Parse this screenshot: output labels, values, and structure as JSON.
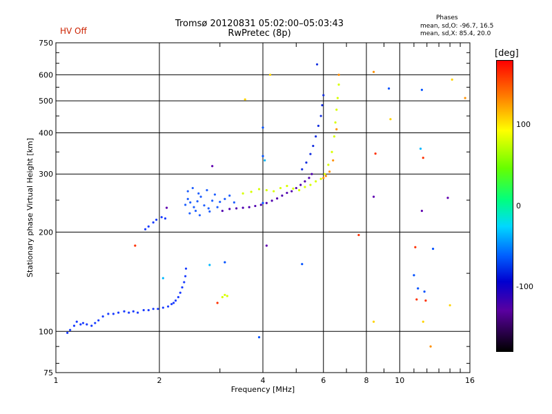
{
  "header": {
    "title": "Tromsø 20120831 05:02:00–05:03:43",
    "subtitle": "RwPretec (8p)",
    "hv_status": "HV Off",
    "phases_heading": "Phases",
    "phases_o": "mean, sd,O: -96.7, 16.5",
    "phases_x": "mean, sd,X: 85.4, 20.0"
  },
  "colorbar": {
    "unit": "[deg]",
    "ticks": [
      "100",
      "0",
      "-100"
    ],
    "tick_values": [
      100,
      0,
      -100
    ],
    "range": [
      -180,
      180
    ]
  },
  "chart_data": {
    "type": "scatter",
    "xlabel": "Frequency [MHz]",
    "ylabel": "Stationary phase Virtual Height [km]",
    "x_scale": "log",
    "y_scale": "log",
    "xlim": [
      1,
      16
    ],
    "ylim": [
      75,
      750
    ],
    "grid": true,
    "x_ticks": [
      1,
      2,
      4,
      6,
      8,
      10,
      16
    ],
    "x_tick_labels": [
      "1",
      "2",
      "4",
      "6",
      "8",
      "10",
      "16"
    ],
    "y_ticks": [
      75,
      100,
      200,
      300,
      400,
      500,
      600,
      750
    ],
    "y_tick_labels": [
      "75",
      "100",
      "200",
      "300",
      "400",
      "500",
      "600",
      "750"
    ],
    "series": [
      {
        "color": "#1a3cff",
        "points": [
          [
            1.08,
            99
          ],
          [
            1.1,
            101
          ],
          [
            1.13,
            104
          ],
          [
            1.15,
            107
          ],
          [
            1.18,
            105
          ],
          [
            1.2,
            106
          ],
          [
            1.23,
            105
          ],
          [
            1.27,
            104
          ],
          [
            1.3,
            106
          ],
          [
            1.33,
            108
          ],
          [
            1.37,
            111
          ],
          [
            1.42,
            113
          ],
          [
            1.47,
            113
          ],
          [
            1.52,
            114
          ],
          [
            1.58,
            115
          ],
          [
            1.63,
            114
          ],
          [
            1.68,
            115
          ],
          [
            1.73,
            114
          ],
          [
            1.8,
            116
          ],
          [
            1.86,
            116
          ],
          [
            1.92,
            117
          ],
          [
            1.98,
            117
          ],
          [
            2.05,
            118
          ],
          [
            2.12,
            119
          ],
          [
            2.17,
            121
          ],
          [
            2.2,
            122
          ],
          [
            2.23,
            124
          ],
          [
            2.27,
            127
          ],
          [
            2.3,
            131
          ],
          [
            2.33,
            136
          ],
          [
            2.36,
            141
          ],
          [
            2.38,
            147
          ],
          [
            2.39,
            155
          ],
          [
            1.82,
            204
          ],
          [
            1.86,
            208
          ],
          [
            1.92,
            214
          ],
          [
            1.96,
            218
          ],
          [
            2.03,
            222
          ],
          [
            2.08,
            220
          ]
        ]
      },
      {
        "color": "#2060ff",
        "points": [
          [
            2.38,
            242
          ],
          [
            2.42,
            252
          ],
          [
            2.46,
            246
          ],
          [
            2.52,
            238
          ],
          [
            2.58,
            248
          ],
          [
            2.64,
            256
          ],
          [
            2.7,
            241
          ],
          [
            2.78,
            236
          ],
          [
            2.85,
            249
          ],
          [
            2.9,
            260
          ],
          [
            3.0,
            247
          ],
          [
            3.1,
            252
          ],
          [
            3.2,
            258
          ],
          [
            3.3,
            246
          ],
          [
            2.45,
            228
          ],
          [
            2.55,
            232
          ],
          [
            2.62,
            225
          ],
          [
            2.8,
            231
          ],
          [
            2.95,
            238
          ],
          [
            2.42,
            266
          ],
          [
            2.5,
            272
          ],
          [
            2.6,
            262
          ],
          [
            2.75,
            268
          ]
        ]
      },
      {
        "color": "#5000b0",
        "points": [
          [
            3.05,
            232
          ],
          [
            3.2,
            235
          ],
          [
            3.35,
            236
          ],
          [
            3.5,
            237
          ],
          [
            3.65,
            238
          ],
          [
            3.8,
            240
          ],
          [
            3.95,
            242
          ],
          [
            4.1,
            245
          ],
          [
            4.25,
            249
          ],
          [
            4.4,
            253
          ],
          [
            4.55,
            258
          ],
          [
            4.7,
            263
          ],
          [
            4.85,
            266
          ],
          [
            5.0,
            272
          ],
          [
            5.15,
            278
          ],
          [
            5.3,
            285
          ],
          [
            5.45,
            292
          ],
          [
            5.55,
            300
          ]
        ]
      },
      {
        "color": "#1530e0",
        "points": [
          [
            5.2,
            310
          ],
          [
            5.35,
            325
          ],
          [
            5.5,
            345
          ],
          [
            5.6,
            365
          ],
          [
            5.7,
            390
          ],
          [
            5.8,
            420
          ],
          [
            5.9,
            450
          ],
          [
            5.95,
            485
          ],
          [
            6.0,
            520
          ],
          [
            5.75,
            645
          ]
        ]
      },
      {
        "color": "#d8ff00",
        "points": [
          [
            3.5,
            262
          ],
          [
            3.7,
            265
          ],
          [
            3.9,
            270
          ],
          [
            4.1,
            268
          ],
          [
            4.3,
            266
          ],
          [
            4.5,
            272
          ],
          [
            4.7,
            276
          ],
          [
            4.9,
            271
          ],
          [
            5.1,
            268
          ],
          [
            5.3,
            274
          ],
          [
            5.5,
            278
          ],
          [
            5.7,
            285
          ],
          [
            5.9,
            290
          ],
          [
            6.05,
            300
          ],
          [
            6.2,
            320
          ],
          [
            6.35,
            350
          ],
          [
            6.45,
            390
          ],
          [
            6.5,
            430
          ],
          [
            6.55,
            470
          ],
          [
            6.6,
            510
          ],
          [
            6.65,
            560
          ],
          [
            3.05,
            127
          ],
          [
            3.1,
            129
          ],
          [
            3.15,
            128
          ]
        ]
      },
      {
        "color": "#ff9000",
        "points": [
          [
            6.0,
            292
          ],
          [
            6.1,
            296
          ],
          [
            6.25,
            305
          ],
          [
            6.4,
            330
          ],
          [
            6.55,
            410
          ],
          [
            6.65,
            600
          ],
          [
            8.4,
            612
          ],
          [
            15.5,
            510
          ],
          [
            12.3,
            90
          ]
        ]
      },
      {
        "color": "#ffd400",
        "points": [
          [
            4.2,
            600
          ],
          [
            3.55,
            505
          ],
          [
            9.4,
            440
          ],
          [
            14.2,
            580
          ],
          [
            8.4,
            107
          ],
          [
            11.7,
            107
          ],
          [
            14.0,
            120
          ]
        ]
      },
      {
        "color": "#0050ff",
        "points": [
          [
            4.0,
            415
          ],
          [
            4.0,
            340
          ],
          [
            4.0,
            245
          ],
          [
            5.2,
            160
          ],
          [
            3.1,
            162
          ],
          [
            9.3,
            545
          ],
          [
            11.6,
            540
          ],
          [
            11.0,
            148
          ],
          [
            11.3,
            135
          ],
          [
            11.8,
            132
          ],
          [
            3.9,
            96
          ],
          [
            12.5,
            178
          ]
        ]
      },
      {
        "color": "#00b8ff",
        "points": [
          [
            4.05,
            330
          ],
          [
            11.5,
            358
          ],
          [
            2.05,
            145
          ],
          [
            2.8,
            159
          ]
        ]
      },
      {
        "color": "#ff3000",
        "points": [
          [
            7.6,
            196
          ],
          [
            11.7,
            336
          ],
          [
            11.1,
            180
          ],
          [
            11.2,
            125
          ],
          [
            11.9,
            124
          ],
          [
            2.95,
            122
          ],
          [
            1.7,
            182
          ],
          [
            8.5,
            346
          ]
        ]
      },
      {
        "color": "#6000b0",
        "points": [
          [
            8.4,
            256
          ],
          [
            13.8,
            254
          ],
          [
            11.6,
            232
          ],
          [
            4.1,
            182
          ],
          [
            2.85,
            317
          ],
          [
            2.1,
            237
          ]
        ]
      }
    ]
  }
}
